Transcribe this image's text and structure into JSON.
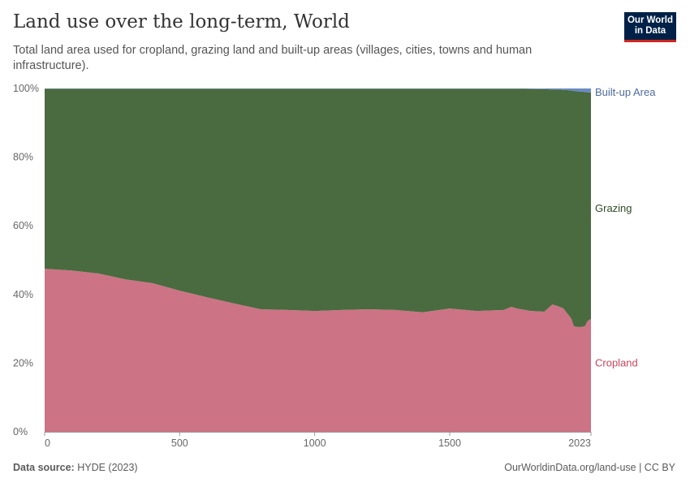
{
  "header": {
    "title": "Land use over the long-term, World",
    "subtitle": "Total land area used for cropland, grazing land and built-up areas (villages, cities, towns and human infrastructure).",
    "logo": "Our World in Data"
  },
  "footer": {
    "source_label": "Data source:",
    "source": "HYDE (2023)",
    "link": "OurWorldinData.org/land-use | CC BY"
  },
  "chart_data": {
    "type": "area",
    "stacked": true,
    "stack_mode": "relative",
    "xlim": [
      0,
      2023
    ],
    "ylim": [
      0,
      100
    ],
    "x_ticks": [
      "0",
      "500",
      "1000",
      "1500",
      "2023"
    ],
    "y_ticks": [
      "0%",
      "20%",
      "40%",
      "60%",
      "80%",
      "100%"
    ],
    "grid": "horizontal dashed",
    "legend_placement": "right inline labels",
    "x": [
      0,
      100,
      200,
      300,
      400,
      500,
      600,
      700,
      800,
      900,
      1000,
      1100,
      1200,
      1300,
      1400,
      1500,
      1600,
      1700,
      1728,
      1750,
      1800,
      1850,
      1880,
      1900,
      1920,
      1940,
      1950,
      1960,
      1980,
      2000,
      2010,
      2023
    ],
    "series": [
      {
        "name": "Cropland",
        "color": "#cc7385",
        "label_color": "#c8455e",
        "values": [
          47.5,
          47,
          46.1,
          44.4,
          43.3,
          41.1,
          39.2,
          37.4,
          35.7,
          35.5,
          35.2,
          35.5,
          35.7,
          35.5,
          34.8,
          35.9,
          35.2,
          35.5,
          36.4,
          35.9,
          35.2,
          35.0,
          37.1,
          36.6,
          36.0,
          34.0,
          33.0,
          30.7,
          30.5,
          30.7,
          32.2,
          32.9
        ]
      },
      {
        "name": "Grazing",
        "color": "#496b3f",
        "label_color": "#2e4a27",
        "values": [
          52.4,
          52.9,
          53.8,
          55.5,
          56.6,
          58.8,
          60.7,
          62.5,
          64.2,
          64.4,
          64.7,
          64.4,
          64.2,
          64.4,
          65.1,
          64.0,
          64.7,
          64.4,
          63.5,
          64.0,
          64.65,
          64.8,
          62.6,
          63.1,
          63.6,
          65.5,
          66.4,
          68.6,
          68.6,
          68.3,
          66.7,
          65.9
        ]
      },
      {
        "name": "Built-up Area",
        "color": "#6a8bc2",
        "label_color": "#4c6a9c",
        "values": [
          0.1,
          0.1,
          0.1,
          0.1,
          0.1,
          0.1,
          0.1,
          0.1,
          0.1,
          0.1,
          0.1,
          0.1,
          0.1,
          0.1,
          0.1,
          0.1,
          0.1,
          0.1,
          0.1,
          0.1,
          0.15,
          0.2,
          0.3,
          0.3,
          0.4,
          0.5,
          0.6,
          0.7,
          0.9,
          1.0,
          1.1,
          1.2
        ]
      }
    ]
  }
}
